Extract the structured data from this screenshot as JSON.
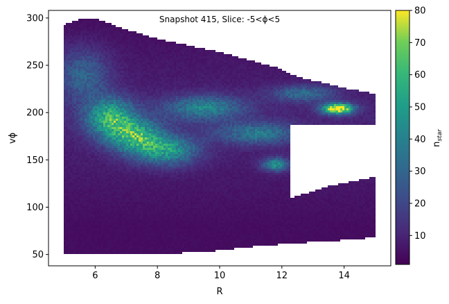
{
  "chart_data": {
    "type": "heatmap",
    "title": "Snapshot 415, Slice: -5<ϕ<5",
    "xlabel": "R",
    "ylabel": "vϕ",
    "xlim": [
      4.5,
      15.5
    ],
    "ylim": [
      38,
      308
    ],
    "x_ticks": [
      6,
      8,
      10,
      12,
      14
    ],
    "y_ticks": [
      50,
      100,
      150,
      200,
      250,
      300
    ],
    "colorbar": {
      "label": "n_star",
      "label_main": "n",
      "label_sub": "star",
      "colormap": "viridis",
      "range": [
        1,
        80
      ],
      "ticks": [
        10,
        20,
        30,
        40,
        50,
        60,
        70,
        80
      ]
    },
    "data_extent": {
      "x_range": [
        5.0,
        15.0
      ],
      "upper_edge": [
        [
          5.0,
          293
        ],
        [
          5.4,
          298
        ],
        [
          6.0,
          300
        ],
        [
          6.8,
          290
        ],
        [
          8.0,
          278
        ],
        [
          10.0,
          264
        ],
        [
          11.8,
          248
        ],
        [
          12.5,
          238
        ],
        [
          14.0,
          226
        ],
        [
          15.0,
          220
        ]
      ],
      "lower_edge": [
        [
          5.0,
          50
        ],
        [
          8.0,
          50
        ],
        [
          9.0,
          52
        ],
        [
          10.0,
          54
        ],
        [
          11.0,
          58
        ],
        [
          12.5,
          62
        ],
        [
          14.0,
          65
        ],
        [
          15.0,
          68
        ]
      ],
      "empty_gap": {
        "x_from": 12.3,
        "x_to": 15.0,
        "v_top": [
          [
            12.3,
            188
          ],
          [
            15.0,
            188
          ]
        ],
        "v_bottom": [
          [
            12.3,
            110
          ],
          [
            13.5,
            122
          ],
          [
            15.0,
            132
          ]
        ]
      }
    },
    "density_features": [
      {
        "x": 6.5,
        "y": 195,
        "value": 48,
        "sx": 0.55,
        "sy": 14
      },
      {
        "x": 7.3,
        "y": 175,
        "value": 46,
        "sx": 0.6,
        "sy": 12
      },
      {
        "x": 8.3,
        "y": 160,
        "value": 40,
        "sx": 0.7,
        "sy": 11
      },
      {
        "x": 9.5,
        "y": 205,
        "value": 32,
        "sx": 0.9,
        "sy": 9
      },
      {
        "x": 11.2,
        "y": 178,
        "value": 28,
        "sx": 0.9,
        "sy": 8
      },
      {
        "x": 11.8,
        "y": 145,
        "value": 38,
        "sx": 0.3,
        "sy": 5
      },
      {
        "x": 13.8,
        "y": 204,
        "value": 80,
        "sx": 0.35,
        "sy": 4
      },
      {
        "x": 5.6,
        "y": 240,
        "value": 22,
        "sx": 0.6,
        "sy": 20
      },
      {
        "x": 12.7,
        "y": 220,
        "value": 25,
        "sx": 0.7,
        "sy": 6
      }
    ]
  }
}
